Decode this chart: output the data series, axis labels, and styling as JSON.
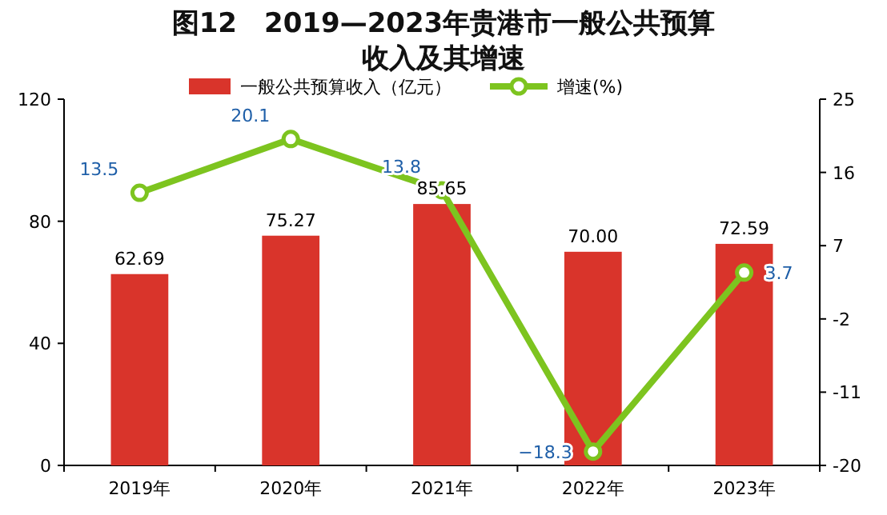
{
  "chart_data": {
    "type": "bar",
    "title": "图12　2019—2023年贵港市一般公共预算收入及其增速",
    "categories": [
      "2019年",
      "2020年",
      "2021年",
      "2022年",
      "2023年"
    ],
    "series": [
      {
        "name": "一般公共预算收入（亿元）",
        "color": "#d9342b",
        "values": [
          62.69,
          75.27,
          85.65,
          70.0,
          72.59
        ],
        "value_labels": [
          "62.69",
          "75.27",
          "85.65",
          "70.00",
          "72.59"
        ]
      },
      {
        "name": "增速(%)",
        "type": "line",
        "axis": "y2",
        "color": "#7dc41f",
        "marker": "circle",
        "values": [
          13.5,
          20.1,
          13.8,
          -18.3,
          3.7
        ],
        "value_labels": [
          "13.5",
          "20.1",
          "13.8",
          "−18.3",
          "3.7"
        ]
      }
    ],
    "ylim": [
      0,
      120
    ],
    "yticks": [
      0,
      40,
      80,
      120
    ],
    "y2lim": [
      -20,
      25
    ],
    "y2ticks": [
      -20,
      -11,
      -2,
      7,
      16,
      25
    ],
    "legend": "top",
    "grid": false
  }
}
